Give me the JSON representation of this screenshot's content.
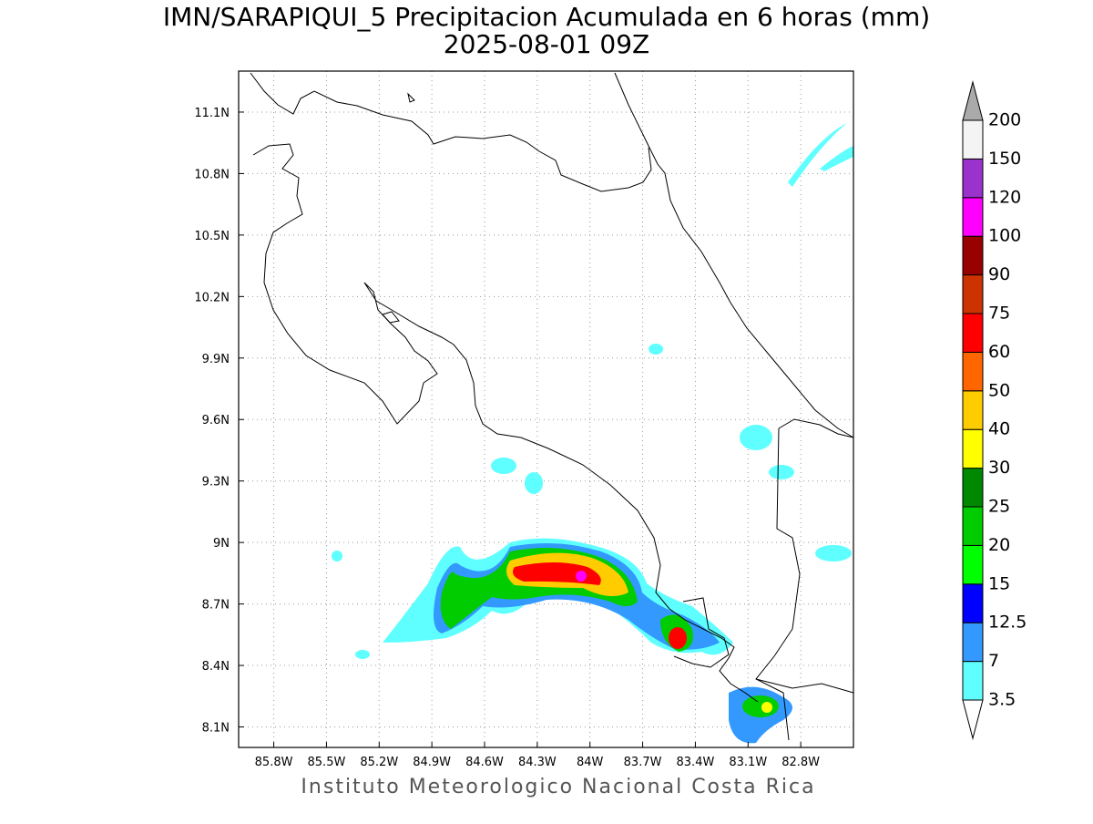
{
  "map": {
    "title": "IMN/SARAPIQUI_5 Precipitacion Acumulada en 6 horas (mm)",
    "subtitle": "2025-08-01 09Z",
    "footer": "Instituto Meteorologico Nacional Costa Rica",
    "xlim": [
      -86.0,
      -82.5
    ],
    "ylim": [
      8.0,
      11.3
    ],
    "grid": true,
    "xticks": [
      {
        "value": -85.8,
        "label": "85.8W"
      },
      {
        "value": -85.5,
        "label": "85.5W"
      },
      {
        "value": -85.2,
        "label": "85.2W"
      },
      {
        "value": -84.9,
        "label": "84.9W"
      },
      {
        "value": -84.6,
        "label": "84.6W"
      },
      {
        "value": -84.3,
        "label": "84.3W"
      },
      {
        "value": -84.0,
        "label": "84W"
      },
      {
        "value": -83.7,
        "label": "83.7W"
      },
      {
        "value": -83.4,
        "label": "83.4W"
      },
      {
        "value": -83.1,
        "label": "83.1W"
      },
      {
        "value": -82.8,
        "label": "82.8W"
      }
    ],
    "yticks": [
      {
        "value": 8.1,
        "label": "8.1N"
      },
      {
        "value": 8.4,
        "label": "8.4N"
      },
      {
        "value": 8.7,
        "label": "8.7N"
      },
      {
        "value": 9.0,
        "label": "9N"
      },
      {
        "value": 9.3,
        "label": "9.3N"
      },
      {
        "value": 9.6,
        "label": "9.6N"
      },
      {
        "value": 9.9,
        "label": "9.9N"
      },
      {
        "value": 10.2,
        "label": "10.2N"
      },
      {
        "value": 10.5,
        "label": "10.5N"
      },
      {
        "value": 10.8,
        "label": "10.8N"
      },
      {
        "value": 11.1,
        "label": "11.1N"
      }
    ],
    "colorbar": {
      "levels": [
        3.5,
        7,
        12.5,
        15,
        20,
        25,
        30,
        40,
        50,
        60,
        75,
        90,
        100,
        120,
        150,
        200
      ],
      "colors": [
        "#5fffff",
        "#3399ff",
        "#0000ff",
        "#00ff00",
        "#00cc00",
        "#008800",
        "#ffff00",
        "#ffcc00",
        "#ff6600",
        "#ff0000",
        "#cc3300",
        "#990000",
        "#ff00ff",
        "#9933cc",
        "#f4f4f4"
      ],
      "under_color": "#ffffff",
      "over_color": "#aaaaaa"
    }
  }
}
